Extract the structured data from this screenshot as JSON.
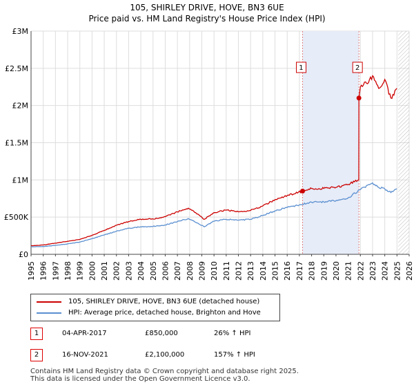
{
  "chart_data": {
    "type": "line",
    "title": "105, SHIRLEY DRIVE, HOVE, BN3 6UE",
    "subtitle": "Price paid vs. HM Land Registry's House Price Index (HPI)",
    "xlabel": "",
    "ylabel": "",
    "xlim": [
      1995,
      2026
    ],
    "ylim": [
      0,
      3000000
    ],
    "y_ticks": [
      0,
      500000,
      1000000,
      1500000,
      2000000,
      2500000,
      3000000
    ],
    "y_tick_labels": [
      "£0",
      "£500K",
      "£1M",
      "£1.5M",
      "£2M",
      "£2.5M",
      "£3M"
    ],
    "x_ticks": [
      1995,
      1996,
      1997,
      1998,
      1999,
      2000,
      2001,
      2002,
      2003,
      2004,
      2005,
      2006,
      2007,
      2008,
      2009,
      2010,
      2011,
      2012,
      2013,
      2014,
      2015,
      2016,
      2017,
      2018,
      2019,
      2020,
      2021,
      2022,
      2023,
      2024,
      2025,
      2026
    ],
    "grid": true,
    "shaded_region": [
      2017.26,
      2021.88
    ],
    "hatched_future_from": 2025.1,
    "series": [
      {
        "name": "105, SHIRLEY DRIVE, HOVE, BN3 6UE (detached house)",
        "color": "#cc0000",
        "x": [
          1995,
          1996,
          1997,
          1998,
          1999,
          2000,
          2001,
          2002,
          2003,
          2004,
          2005,
          2006,
          2007,
          2007.9,
          2008.5,
          2009.2,
          2010,
          2011,
          2012,
          2013,
          2014,
          2015,
          2016,
          2017.26,
          2018,
          2019,
          2020,
          2021,
          2021.87,
          2021.88,
          2022,
          2022.5,
          2023,
          2023.5,
          2024,
          2024.5,
          2025
        ],
        "y": [
          115000,
          125000,
          150000,
          175000,
          200000,
          255000,
          320000,
          390000,
          440000,
          470000,
          475000,
          505000,
          570000,
          620000,
          560000,
          470000,
          560000,
          595000,
          570000,
          590000,
          650000,
          735000,
          790000,
          850000,
          885000,
          885000,
          900000,
          940000,
          1000000,
          2100000,
          2250000,
          2300000,
          2400000,
          2230000,
          2350000,
          2100000,
          2230000
        ]
      },
      {
        "name": "HPI: Average price, detached house, Brighton and Hove",
        "color": "#5a8fd0",
        "x": [
          1995,
          1996,
          1997,
          1998,
          1999,
          2000,
          2001,
          2002,
          2003,
          2004,
          2005,
          2006,
          2007,
          2007.9,
          2008.5,
          2009.2,
          2010,
          2011,
          2012,
          2013,
          2014,
          2015,
          2016,
          2017,
          2018,
          2019,
          2020,
          2021,
          2022,
          2023,
          2023.5,
          2024,
          2024.5,
          2025
        ],
        "y": [
          100000,
          105000,
          120000,
          140000,
          165000,
          210000,
          260000,
          310000,
          350000,
          370000,
          375000,
          395000,
          440000,
          480000,
          430000,
          370000,
          445000,
          470000,
          460000,
          470000,
          520000,
          585000,
          630000,
          665000,
          700000,
          705000,
          720000,
          760000,
          870000,
          960000,
          900000,
          880000,
          830000,
          880000
        ]
      }
    ],
    "annotations": [
      {
        "label": "1",
        "x": 2017.26,
        "y": 850000
      },
      {
        "label": "2",
        "x": 2021.88,
        "y": 2100000
      }
    ]
  },
  "legend": {
    "items": [
      {
        "label": "105, SHIRLEY DRIVE, HOVE, BN3 6UE (detached house)",
        "color": "#cc0000"
      },
      {
        "label": "HPI: Average price, detached house, Brighton and Hove",
        "color": "#5a8fd0"
      }
    ]
  },
  "transactions": [
    {
      "num": "1",
      "date": "04-APR-2017",
      "price": "£850,000",
      "hpi": "26% ↑ HPI"
    },
    {
      "num": "2",
      "date": "16-NOV-2021",
      "price": "£2,100,000",
      "hpi": "157% ↑ HPI"
    }
  ],
  "footer": {
    "line1": "Contains HM Land Registry data © Crown copyright and database right 2025.",
    "line2": "This data is licensed under the Open Government Licence v3.0."
  }
}
